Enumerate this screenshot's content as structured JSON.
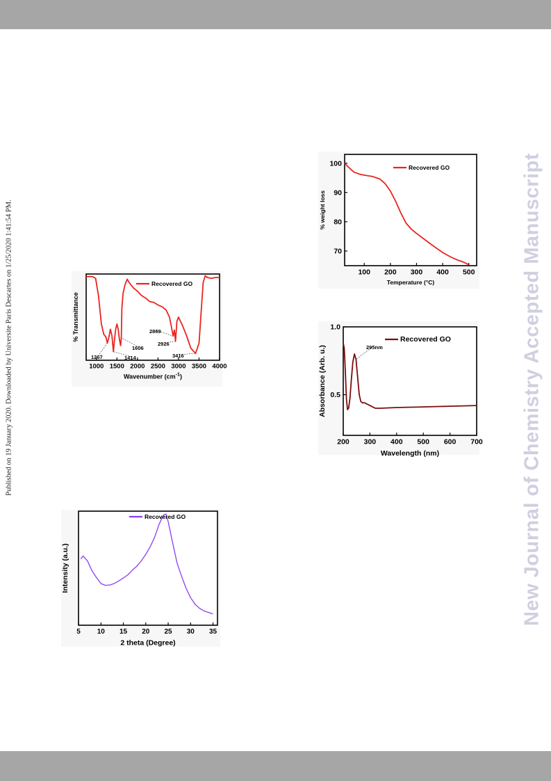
{
  "page": {
    "side_note": "Published on 19 January 2020. Downloaded by Universite Paris Descartes on 1/25/2020 1:41:54 PM.",
    "watermark": "New Journal of Chemistry Accepted Manuscript",
    "band_color": "#a6a6a6"
  },
  "chart_data": [
    {
      "id": "ftir",
      "type": "line",
      "title": "",
      "xlabel": "Wavenumber (cm",
      "xlabel_sup": "-1",
      "xlabel_close": ")",
      "ylabel": "% Transmittance",
      "xlim": [
        750,
        4000
      ],
      "ylim": [
        0,
        100
      ],
      "xticks": [
        "1000",
        "1500",
        "2000",
        "2500",
        "3000",
        "3500",
        "4000"
      ],
      "xtick_values": [
        1000,
        1500,
        2000,
        2500,
        3000,
        3500,
        4000
      ],
      "yticks": [],
      "grid": false,
      "legend_position": "top-right",
      "series": [
        {
          "name": "Recovered GO",
          "color": "#e8241f",
          "x": [
            750,
            900,
            980,
            1050,
            1120,
            1180,
            1230,
            1267,
            1300,
            1340,
            1380,
            1414,
            1440,
            1470,
            1500,
            1530,
            1560,
            1590,
            1606,
            1620,
            1650,
            1700,
            1750,
            1800,
            1900,
            2000,
            2100,
            2200,
            2300,
            2400,
            2500,
            2600,
            2700,
            2780,
            2830,
            2869,
            2900,
            2926,
            2960,
            3000,
            3100,
            3200,
            3300,
            3416,
            3500,
            3550,
            3600,
            3650,
            3700,
            3800,
            3900,
            4000
          ],
          "y": [
            97,
            97,
            95,
            75,
            42,
            30,
            27,
            20,
            26,
            36,
            28,
            10,
            24,
            36,
            42,
            36,
            24,
            17,
            26,
            60,
            78,
            88,
            94,
            90,
            84,
            80,
            75,
            72,
            68,
            67,
            64,
            62,
            58,
            50,
            38,
            28,
            35,
            22,
            45,
            50,
            40,
            28,
            14,
            8,
            20,
            55,
            90,
            98,
            96,
            95,
            96,
            96
          ]
        }
      ],
      "annotations": [
        "1267",
        "1414",
        "1606",
        "2869",
        "2926",
        "3416"
      ]
    },
    {
      "id": "tga",
      "type": "line",
      "title": "",
      "xlabel": "Temperature (°C)",
      "ylabel": "% weight loss",
      "xlim": [
        25,
        530
      ],
      "ylim": [
        65,
        103
      ],
      "xticks": [
        "100",
        "200",
        "300",
        "400",
        "500"
      ],
      "xtick_values": [
        100,
        200,
        300,
        400,
        500
      ],
      "yticks": [
        "70",
        "80",
        "90",
        "100"
      ],
      "ytick_values": [
        70,
        80,
        90,
        100
      ],
      "grid": false,
      "legend_position": "top-right",
      "series": [
        {
          "name": "Recovered GO",
          "color": "#e8241f",
          "x": [
            25,
            40,
            60,
            80,
            100,
            130,
            160,
            180,
            200,
            220,
            240,
            260,
            280,
            300,
            330,
            360,
            400,
            430,
            460,
            480,
            500
          ],
          "y": [
            100,
            98.6,
            97,
            96.3,
            95.9,
            95.5,
            94.6,
            93,
            90.5,
            87,
            83,
            79.5,
            77.5,
            76,
            74,
            72,
            69.5,
            68,
            66.8,
            66.2,
            65.3
          ]
        }
      ]
    },
    {
      "id": "uv",
      "type": "line",
      "title": "",
      "xlabel": "Wavelength (nm)",
      "ylabel": "Absorbance (Arb. u.)",
      "xlim": [
        200,
        700
      ],
      "ylim": [
        0.2,
        1.0
      ],
      "xticks": [
        "200",
        "300",
        "400",
        "500",
        "600",
        "700"
      ],
      "xtick_values": [
        200,
        300,
        400,
        500,
        600,
        700
      ],
      "yticks": [
        "0.5",
        "1.0"
      ],
      "ytick_values": [
        0.5,
        1.0
      ],
      "grid": false,
      "legend_position": "top-right",
      "series": [
        {
          "name": "Recovered GO",
          "color": "#7b0c0c",
          "x": [
            200,
            204,
            208,
            212,
            216,
            220,
            225,
            230,
            236,
            242,
            248,
            254,
            260,
            266,
            272,
            280,
            290,
            300,
            310,
            320,
            340,
            400,
            500,
            600,
            700
          ],
          "y": [
            0.88,
            0.84,
            0.66,
            0.47,
            0.39,
            0.4,
            0.47,
            0.6,
            0.74,
            0.8,
            0.76,
            0.63,
            0.5,
            0.45,
            0.44,
            0.44,
            0.43,
            0.42,
            0.41,
            0.4,
            0.4,
            0.405,
            0.41,
            0.415,
            0.42
          ]
        }
      ],
      "annotations": [
        "295nm"
      ]
    },
    {
      "id": "xrd",
      "type": "line",
      "title": "",
      "xlabel": "2 theta (Degree)",
      "ylabel": "Intensity (a.u.)",
      "xlim": [
        5,
        36
      ],
      "ylim": [
        0,
        100
      ],
      "xticks": [
        "5",
        "10",
        "15",
        "20",
        "25",
        "30",
        "35"
      ],
      "xtick_values": [
        5,
        10,
        15,
        20,
        25,
        30,
        35
      ],
      "yticks": [],
      "grid": false,
      "legend_position": "top-right",
      "series": [
        {
          "name": "Recovered GO",
          "color": "#8a3df2",
          "x": [
            5.5,
            6,
            7,
            8,
            9,
            10,
            11,
            12,
            13,
            14,
            15,
            16,
            17,
            18,
            19,
            20,
            21,
            22,
            23,
            24,
            24.5,
            25,
            26,
            27,
            28,
            29,
            30,
            31,
            32,
            33,
            34,
            35
          ],
          "y": [
            58,
            60,
            55,
            46,
            40,
            35,
            34,
            35,
            37,
            40,
            43,
            46,
            50,
            53,
            57,
            62,
            68,
            76,
            87,
            95,
            96,
            90,
            72,
            55,
            44,
            34,
            26,
            20,
            16,
            13,
            11,
            9
          ]
        }
      ]
    }
  ]
}
